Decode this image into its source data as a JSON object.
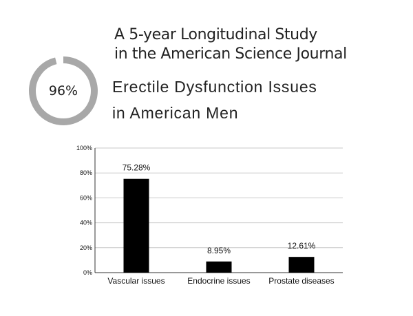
{
  "ring": {
    "label": "96%",
    "value": 0.96,
    "color": "#a8a8a8"
  },
  "headline": {
    "line1": "A 5-year Longitudinal Study",
    "line2": "in the American Science Journal"
  },
  "subhead": {
    "line1": "Erectile Dysfunction Issues",
    "line2": "in American Men"
  },
  "chart_data": {
    "type": "bar",
    "categories": [
      "Vascular issues",
      "Endocrine issues",
      "Prostate diseases"
    ],
    "values": [
      75.28,
      8.95,
      12.61
    ],
    "value_labels": [
      "75.28%",
      "8.95%",
      "12.61%"
    ],
    "y_ticks": [
      0,
      20,
      40,
      60,
      80,
      100
    ],
    "y_tick_labels": [
      "0%",
      "20%",
      "40%",
      "60%",
      "80%",
      "100%"
    ],
    "ylim": [
      0,
      100
    ],
    "grid": true,
    "bar_color": "#000000",
    "grid_color": "#c8c8c8"
  }
}
